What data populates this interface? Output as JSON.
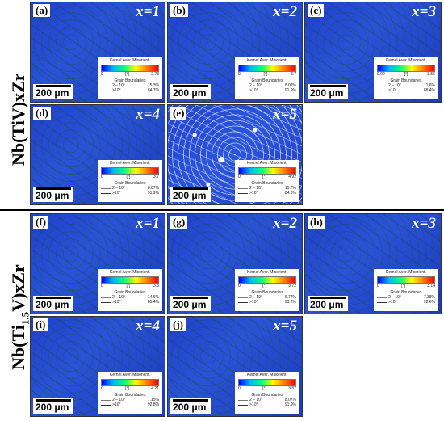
{
  "row_labels": {
    "top": "Nb(TiV)xZr",
    "bottom_pre": "Nb(Ti",
    "bottom_sub": "1.5",
    "bottom_post": "V)xZr"
  },
  "legend_text": {
    "title": "Kernel Aver. Misorient.",
    "unit": "[°]",
    "gb_title": "Grain Boundaries",
    "low_range": "2 – 10°",
    "high_range": ">10°"
  },
  "scale_label": "200 μm",
  "panels": [
    {
      "id": "a",
      "label": "(a)",
      "x": "x=1",
      "min": "0",
      "max": "2.73",
      "low": "15.3%",
      "high": "84.7%"
    },
    {
      "id": "b",
      "label": "(b)",
      "x": "x=2",
      "min": "0",
      "max": "3.7",
      "low": "8.07%",
      "high": "91.9%"
    },
    {
      "id": "c",
      "label": "(c)",
      "x": "x=3",
      "min": "0.02",
      "max": "3.55",
      "low": "11.6%",
      "high": "88.4%"
    },
    {
      "id": "d",
      "label": "(d)",
      "x": "x=4",
      "min": "0",
      "max": "3.7",
      "low": "8.07%",
      "high": "91.9%"
    },
    {
      "id": "e",
      "label": "(e)",
      "x": "x=5",
      "min": "0",
      "max": "4.92",
      "low": "15.7%",
      "high": "84.3%"
    },
    {
      "id": "f",
      "label": "(f)",
      "x": "x=1",
      "min": "0",
      "max": "3.3",
      "low": "14.6%",
      "high": "85.4%"
    },
    {
      "id": "g",
      "label": "(g)",
      "x": "x=2",
      "min": "0",
      "max": "3.72",
      "low": "6.77%",
      "high": "93.2%"
    },
    {
      "id": "h",
      "label": "(h)",
      "x": "x=3",
      "min": "0",
      "max": "3.14",
      "low": "7.38%",
      "high": "92.6%"
    },
    {
      "id": "i",
      "label": "(i)",
      "x": "x=4",
      "min": "0",
      "max": "4.21",
      "low": "7.15%",
      "high": "92.8%"
    },
    {
      "id": "j",
      "label": "(j)",
      "x": "x=5",
      "min": "0",
      "max": "3.87",
      "low": "8.07%",
      "high": "91.9%"
    }
  ]
}
